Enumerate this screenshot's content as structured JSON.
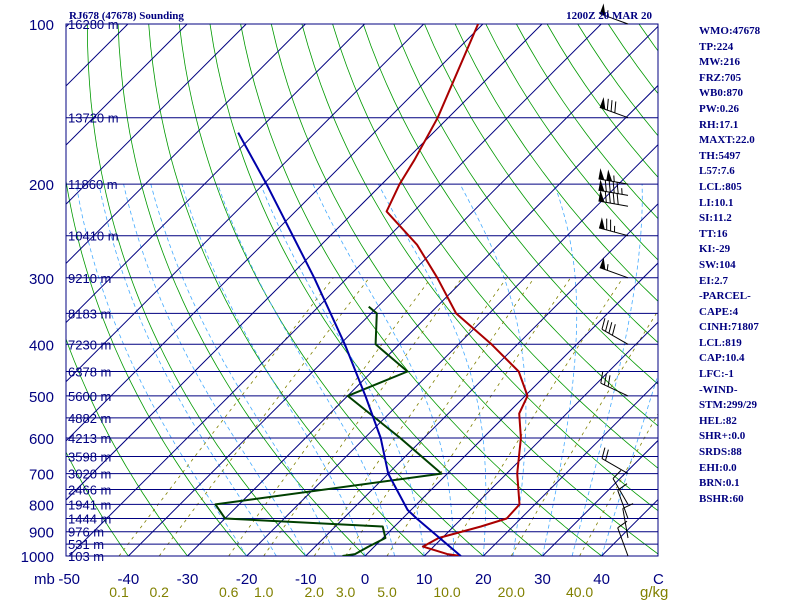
{
  "chart_data": {
    "type": "line",
    "title": "RJ678 (47678) Sounding",
    "time": "1200Z 20 MAR 20",
    "pressure_unit": "mb",
    "temp_unit": "C",
    "mixing_ratio_unit": "g/kg",
    "pressure_ticks": [
      100,
      200,
      300,
      400,
      500,
      600,
      700,
      800,
      900,
      1000
    ],
    "temp_ticks": [
      -50,
      -40,
      -30,
      -20,
      -10,
      0,
      10,
      20,
      30,
      40
    ],
    "mixing_ratio_labels": [
      "0.1",
      "0.2",
      "0.6",
      "1.0",
      "2.0",
      "3.0",
      "5.0",
      "10.0",
      "20.0",
      "40.0"
    ],
    "height_levels": [
      {
        "p": 100,
        "label": "16280 m"
      },
      {
        "p": 150,
        "label": "13720 m"
      },
      {
        "p": 200,
        "label": "11860 m"
      },
      {
        "p": 250,
        "label": "10410 m"
      },
      {
        "p": 300,
        "label": "9210 m"
      },
      {
        "p": 350,
        "label": "8183 m"
      },
      {
        "p": 400,
        "label": "7230 m"
      },
      {
        "p": 450,
        "label": "6378 m"
      },
      {
        "p": 500,
        "label": "5600 m"
      },
      {
        "p": 550,
        "label": "4882 m"
      },
      {
        "p": 600,
        "label": "4213 m"
      },
      {
        "p": 650,
        "label": "3598 m"
      },
      {
        "p": 700,
        "label": "3020 m"
      },
      {
        "p": 750,
        "label": "2466 m"
      },
      {
        "p": 800,
        "label": "1941 m"
      },
      {
        "p": 850,
        "label": "1444 m"
      },
      {
        "p": 900,
        "label": "976 m"
      },
      {
        "p": 950,
        "label": "531 m"
      },
      {
        "p": 1000,
        "label": "103 m"
      }
    ],
    "series": [
      {
        "name": "Temperature",
        "color": "#aa0000",
        "points": [
          [
            1000,
            16.2
          ],
          [
            992,
            13.6
          ],
          [
            960,
            8.2
          ],
          [
            925,
            9.4
          ],
          [
            880,
            14.6
          ],
          [
            850,
            17.6
          ],
          [
            800,
            17.4
          ],
          [
            700,
            11.8
          ],
          [
            600,
            6.4
          ],
          [
            540,
            2.0
          ],
          [
            500,
            0.4
          ],
          [
            450,
            -5.2
          ],
          [
            400,
            -14.4
          ],
          [
            350,
            -25.6
          ],
          [
            300,
            -34.8
          ],
          [
            260,
            -43.8
          ],
          [
            225,
            -54.6
          ],
          [
            200,
            -57.0
          ],
          [
            180,
            -58.6
          ],
          [
            150,
            -61.8
          ],
          [
            100,
            -70.8
          ]
        ]
      },
      {
        "name": "Dewpoint",
        "color": "#004000",
        "points": [
          [
            1000,
            -3.8
          ],
          [
            992,
            -2.0
          ],
          [
            960,
            -1.0
          ],
          [
            925,
            0.4
          ],
          [
            880,
            -2.0
          ],
          [
            850,
            -30.0
          ],
          [
            800,
            -34.0
          ],
          [
            700,
            -1.0
          ],
          [
            600,
            -14.0
          ],
          [
            500,
            -30.0
          ],
          [
            450,
            -24.0
          ],
          [
            400,
            -34.0
          ],
          [
            350,
            -39.0
          ],
          [
            340,
            -41.5
          ]
        ]
      },
      {
        "name": "Parcel",
        "color": "#0000aa",
        "points": [
          [
            1000,
            16.2
          ],
          [
            850,
            2.4
          ],
          [
            819,
            -0.6
          ],
          [
            700,
            -10.0
          ],
          [
            600,
            -17.3
          ],
          [
            500,
            -27.0
          ],
          [
            400,
            -39.2
          ],
          [
            300,
            -55.6
          ],
          [
            200,
            -79.5
          ],
          [
            160,
            -93.0
          ]
        ]
      }
    ],
    "wind_barbs": [
      {
        "p": 100,
        "dir": 290,
        "kt": 55
      },
      {
        "p": 150,
        "dir": 290,
        "kt": 80
      },
      {
        "p": 200,
        "dir": 280,
        "kt": 105
      },
      {
        "p": 210,
        "dir": 280,
        "kt": 95
      },
      {
        "p": 220,
        "dir": 280,
        "kt": 90
      },
      {
        "p": 250,
        "dir": 285,
        "kt": 75
      },
      {
        "p": 300,
        "dir": 290,
        "kt": 55
      },
      {
        "p": 400,
        "dir": 300,
        "kt": 40
      },
      {
        "p": 500,
        "dir": 295,
        "kt": 30
      },
      {
        "p": 700,
        "dir": 300,
        "kt": 20
      },
      {
        "p": 800,
        "dir": 330,
        "kt": 10
      },
      {
        "p": 850,
        "dir": 340,
        "kt": 10
      },
      {
        "p": 925,
        "dir": 350,
        "kt": 10
      },
      {
        "p": 1000,
        "dir": 340,
        "kt": 10
      }
    ]
  },
  "stats": [
    "WMO:47678",
    "TP:224",
    "MW:216",
    "FRZ:705",
    "WB0:870",
    "PW:0.26",
    "RH:17.1",
    "MAXT:22.0",
    "TH:5497",
    "L57:7.6",
    "LCL:805",
    "LI:10.1",
    "SI:11.2",
    "TT:16",
    "KI:-29",
    "SW:104",
    "EI:2.7",
    "-PARCEL-",
    "CAPE:4",
    "CINH:71807",
    "LCL:819",
    "CAP:10.4",
    "LFC:-1",
    "-WIND-",
    "STM:299/29",
    "HEL:82",
    "SHR+:0.0",
    "SRDS:88",
    "EHI:0.0",
    "BRN:0.1",
    "BSHR:60"
  ],
  "colors": {
    "isobar": "#000080",
    "isotherm": "#00007f",
    "dry_adiabat": "#009900",
    "moist_adiabat": "#44aaff",
    "mixing_ratio": "#808000",
    "temp_label": "#000080",
    "mr_label": "#808000",
    "text": "#000080"
  }
}
